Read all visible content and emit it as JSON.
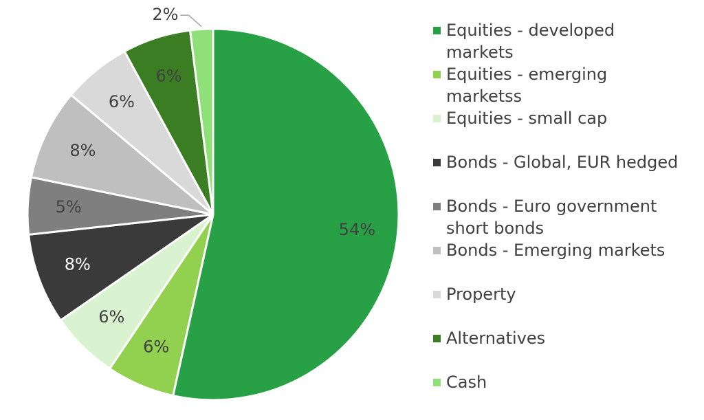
{
  "chart_data": {
    "type": "pie",
    "categories": [
      "Equities - developed markets",
      "Equities - emerging marketss",
      "Equities - small cap",
      "Bonds - Global, EUR hedged",
      "Bonds - Euro government short bonds",
      "Bonds - Emerging markets",
      "Property",
      "Alternatives",
      "Cash"
    ],
    "values": [
      54,
      6,
      6,
      8,
      5,
      8,
      6,
      6,
      2
    ],
    "value_labels": [
      "54%",
      "6%",
      "6%",
      "8%",
      "5%",
      "8%",
      "6%",
      "6%",
      "2%"
    ],
    "colors": [
      "#27a046",
      "#92d050",
      "#d9f2d0",
      "#3a3a3a",
      "#7f7f7f",
      "#bfbfbf",
      "#d9d9d9",
      "#3a7d22",
      "#90e07a"
    ],
    "legend": "right"
  }
}
